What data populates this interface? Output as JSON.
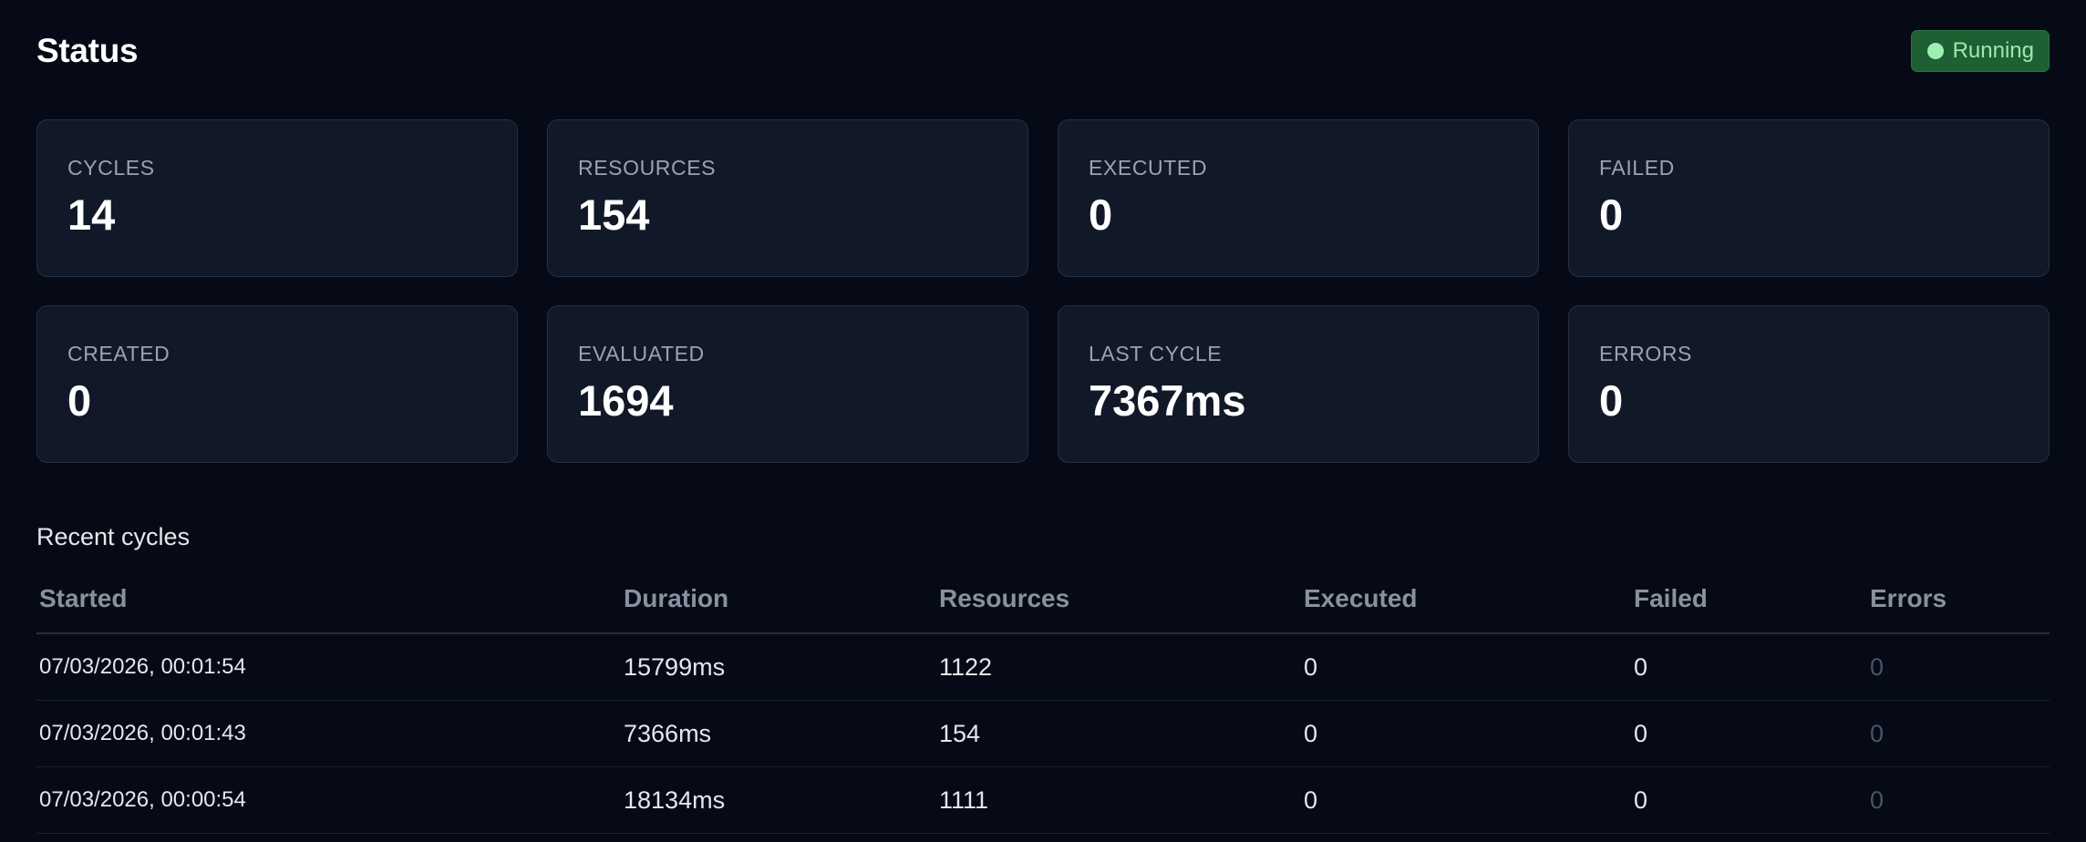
{
  "header": {
    "title": "Status",
    "status_label": "Running",
    "status_color": "#9ef0b0"
  },
  "stats": [
    {
      "label": "CYCLES",
      "value": "14"
    },
    {
      "label": "RESOURCES",
      "value": "154"
    },
    {
      "label": "EXECUTED",
      "value": "0"
    },
    {
      "label": "FAILED",
      "value": "0"
    },
    {
      "label": "CREATED",
      "value": "0"
    },
    {
      "label": "EVALUATED",
      "value": "1694"
    },
    {
      "label": "LAST CYCLE",
      "value": "7367ms"
    },
    {
      "label": "ERRORS",
      "value": "0"
    }
  ],
  "recent": {
    "title": "Recent cycles",
    "columns": [
      "Started",
      "Duration",
      "Resources",
      "Executed",
      "Failed",
      "Errors"
    ],
    "rows": [
      {
        "started": "07/03/2026, 00:01:54",
        "duration": "15799ms",
        "resources": "1122",
        "executed": "0",
        "failed": "0",
        "errors": "0"
      },
      {
        "started": "07/03/2026, 00:01:43",
        "duration": "7366ms",
        "resources": "154",
        "executed": "0",
        "failed": "0",
        "errors": "0"
      },
      {
        "started": "07/03/2026, 00:00:54",
        "duration": "18134ms",
        "resources": "1111",
        "executed": "0",
        "failed": "0",
        "errors": "0"
      }
    ]
  }
}
